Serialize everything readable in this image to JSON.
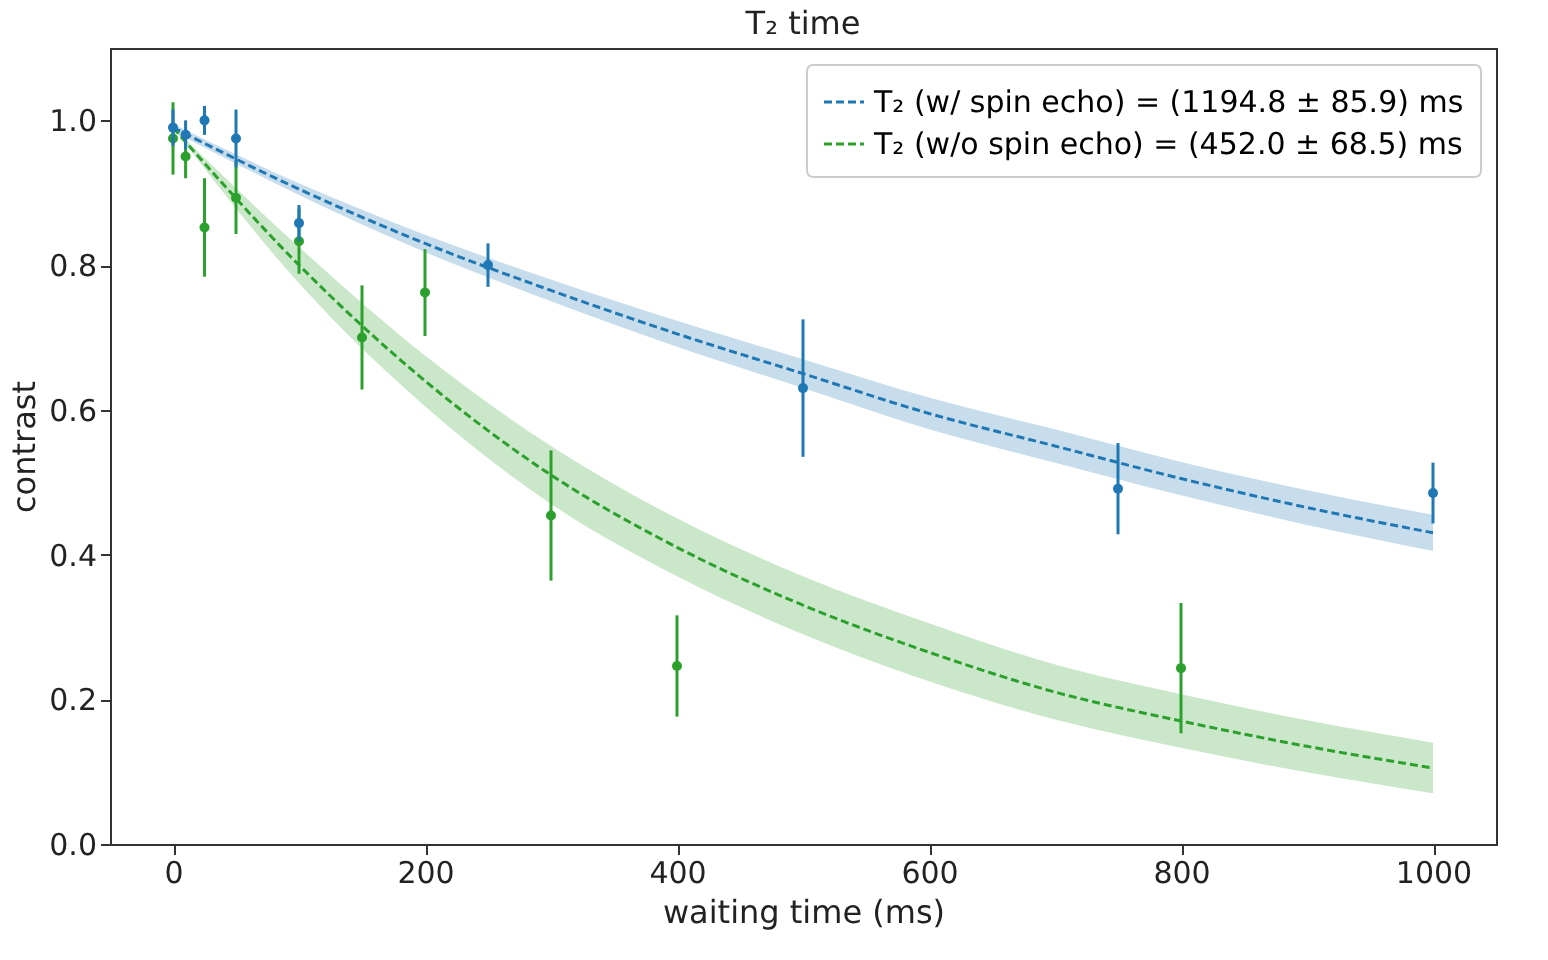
{
  "chart_data": {
    "type": "scatter",
    "title": "T₂ time",
    "xlabel": "waiting time (ms)",
    "ylabel": "contrast",
    "xlim": [
      -50,
      1050
    ],
    "ylim": [
      0,
      1.1
    ],
    "xticks": [
      0,
      200,
      400,
      600,
      800,
      1000
    ],
    "yticks": [
      {
        "value": 0,
        "label": "0.0"
      },
      {
        "value": 0.2,
        "label": "0.2"
      },
      {
        "value": 0.4,
        "label": "0.4"
      },
      {
        "value": 0.6,
        "label": "0.6"
      },
      {
        "value": 0.8,
        "label": "0.8"
      },
      {
        "value": 1.0,
        "label": "1.0"
      }
    ],
    "grid": false,
    "legend": "top right",
    "marker": "circle",
    "series": [
      {
        "type": "line",
        "name": "T₂ (w/ spin echo) = (1194.8 ± 85.9) ms",
        "color": "#1f77b4",
        "line_style": "dashed",
        "marker": "none",
        "x": [
          0,
          100,
          200,
          300,
          400,
          500,
          600,
          700,
          800,
          900,
          1000
        ],
        "values": [
          0.99,
          0.905,
          0.83,
          0.765,
          0.705,
          0.65,
          0.595,
          0.55,
          0.505,
          0.465,
          0.43
        ],
        "lower": [
          0.985,
          0.897,
          0.818,
          0.75,
          0.687,
          0.63,
          0.573,
          0.527,
          0.482,
          0.441,
          0.405
        ],
        "upper": [
          0.995,
          0.913,
          0.842,
          0.78,
          0.723,
          0.67,
          0.617,
          0.573,
          0.528,
          0.489,
          0.455
        ]
      },
      {
        "type": "line",
        "name": "T₂ (w/o spin echo) = (452.0 ± 68.5) ms",
        "color": "#2ca02c",
        "line_style": "dashed",
        "marker": "none",
        "x": [
          0,
          100,
          200,
          300,
          400,
          500,
          600,
          700,
          800,
          900,
          1000
        ],
        "values": [
          0.99,
          0.8,
          0.64,
          0.51,
          0.41,
          0.33,
          0.265,
          0.21,
          0.17,
          0.135,
          0.105
        ],
        "lower": [
          0.99,
          0.775,
          0.605,
          0.47,
          0.37,
          0.29,
          0.225,
          0.172,
          0.133,
          0.099,
          0.07
        ],
        "upper": [
          0.99,
          0.825,
          0.675,
          0.55,
          0.45,
          0.37,
          0.305,
          0.248,
          0.207,
          0.171,
          0.14
        ]
      },
      {
        "color": "#2ca02c",
        "x": [
          0,
          10,
          25,
          50,
          100,
          150,
          200,
          300,
          400,
          800
        ],
        "values": [
          0.975,
          0.95,
          0.852,
          0.893,
          0.833,
          0.7,
          0.762,
          0.454,
          0.246,
          0.243
        ],
        "errors": [
          0.05,
          0.03,
          0.068,
          0.05,
          0.045,
          0.072,
          0.06,
          0.09,
          0.07,
          0.09
        ]
      },
      {
        "color": "#1f77b4",
        "x": [
          0,
          10,
          25,
          50,
          100,
          250,
          500,
          750,
          1000
        ],
        "values": [
          0.99,
          0.98,
          1.0,
          0.975,
          0.858,
          0.8,
          0.63,
          0.491,
          0.485
        ],
        "errors": [
          0.025,
          0.02,
          0.02,
          0.04,
          0.025,
          0.03,
          0.095,
          0.063,
          0.042
        ]
      }
    ]
  }
}
